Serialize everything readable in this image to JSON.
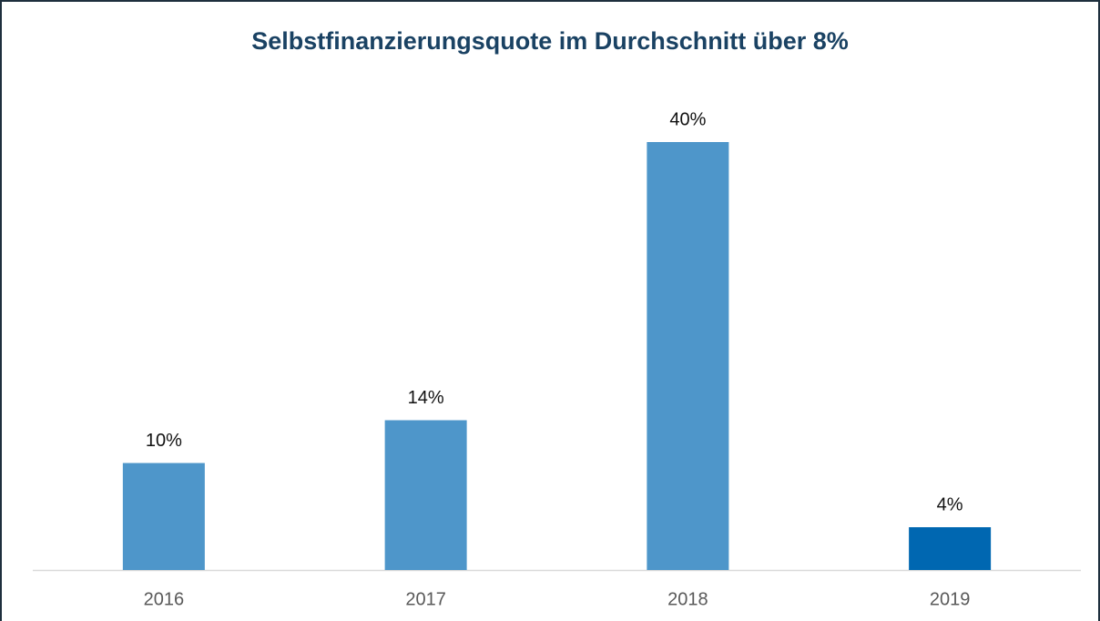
{
  "chart_data": {
    "type": "bar",
    "title": "Selbstfinanzierungsquote im Durchschnitt über 8%",
    "categories": [
      "2016",
      "2017",
      "2018",
      "2019"
    ],
    "values": [
      10,
      14,
      40,
      4
    ],
    "value_labels": [
      "10%",
      "14%",
      "40%",
      "4%"
    ],
    "colors": [
      "#4e96ca",
      "#4e96ca",
      "#4e96ca",
      "#0067b1"
    ]
  }
}
